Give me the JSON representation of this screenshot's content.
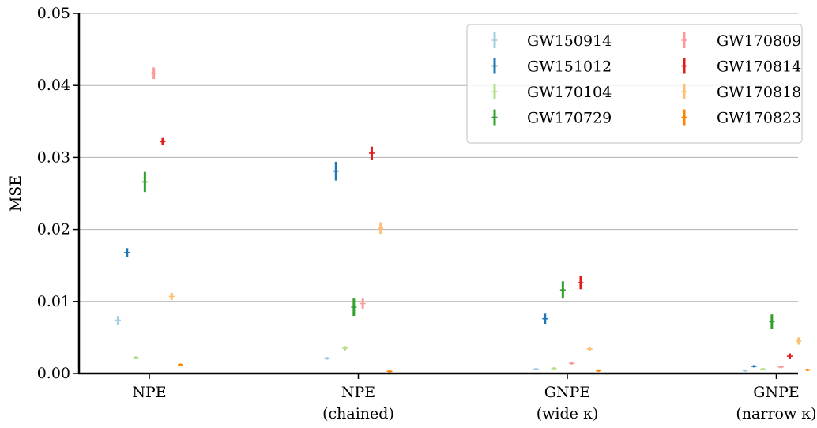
{
  "chart_data": {
    "type": "scatter",
    "title": "",
    "xlabel": "",
    "ylabel": "MSE",
    "ylim": [
      0,
      0.05
    ],
    "yticks": [
      "0.00",
      "0.01",
      "0.02",
      "0.03",
      "0.04",
      "0.05"
    ],
    "grid": "horizontal",
    "legend_position": "top-right",
    "categories": [
      {
        "line1": "NPE",
        "line2": ""
      },
      {
        "line1": "NPE",
        "line2": "(chained)"
      },
      {
        "line1": "GNPE",
        "line2": "(wide κ)"
      },
      {
        "line1": "GNPE",
        "line2": "(narrow κ)"
      }
    ],
    "series": [
      {
        "name": "GW150914",
        "color": "#a6cee3",
        "values": [
          0.0074,
          0.0021,
          0.0006,
          0.0004
        ],
        "errors": [
          0.0006,
          0.0002,
          0.0001,
          0.0001
        ]
      },
      {
        "name": "GW151012",
        "color": "#1f78b4",
        "values": [
          0.0168,
          0.0281,
          0.0076,
          0.001
        ],
        "errors": [
          0.0006,
          0.0013,
          0.0007,
          0.0001
        ]
      },
      {
        "name": "GW170104",
        "color": "#b2df8a",
        "values": [
          0.0022,
          0.0035,
          0.0007,
          0.0006
        ],
        "errors": [
          0.0002,
          0.0003,
          0.0001,
          0.0001
        ]
      },
      {
        "name": "GW170729",
        "color": "#33a02c",
        "values": [
          0.0266,
          0.0092,
          0.0116,
          0.0072
        ],
        "errors": [
          0.0014,
          0.0012,
          0.0012,
          0.001
        ]
      },
      {
        "name": "GW170809",
        "color": "#fb9a99",
        "values": [
          0.0417,
          0.0097,
          0.0014,
          0.0009
        ],
        "errors": [
          0.0008,
          0.0007,
          0.0001,
          0.0001
        ]
      },
      {
        "name": "GW170814",
        "color": "#e31a1c",
        "values": [
          0.0322,
          0.0306,
          0.0126,
          0.0024
        ],
        "errors": [
          0.0005,
          0.0009,
          0.0009,
          0.0004
        ]
      },
      {
        "name": "GW170818",
        "color": "#fdbf6f",
        "values": [
          0.0107,
          0.0202,
          0.0034,
          0.0045
        ],
        "errors": [
          0.0005,
          0.0008,
          0.0003,
          0.0005
        ]
      },
      {
        "name": "GW170823",
        "color": "#ff7f00",
        "values": [
          0.0012,
          0.0003,
          0.0004,
          0.0005
        ],
        "errors": [
          0.0001,
          0.0001,
          0.0001,
          0.0001
        ]
      }
    ]
  }
}
